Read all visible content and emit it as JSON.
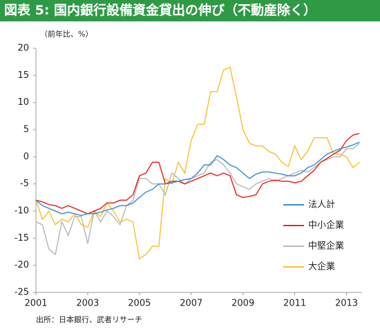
{
  "chart_data": {
    "type": "line",
    "title": "図表 5: 国内銀行設備資金貸出の伸び（不動産除く）",
    "y_label": "（前年比、%）",
    "source": "出所：日本銀行、武者リサーチ",
    "x": [
      2001,
      2001.25,
      2001.5,
      2001.75,
      2002,
      2002.25,
      2002.5,
      2002.75,
      2003,
      2003.25,
      2003.5,
      2003.75,
      2004,
      2004.25,
      2004.5,
      2004.75,
      2005,
      2005.25,
      2005.5,
      2005.75,
      2006,
      2006.25,
      2006.5,
      2006.75,
      2007,
      2007.25,
      2007.5,
      2007.75,
      2008,
      2008.25,
      2008.5,
      2008.75,
      2009,
      2009.25,
      2009.5,
      2009.75,
      2010,
      2010.25,
      2010.5,
      2010.75,
      2011,
      2011.25,
      2011.5,
      2011.75,
      2012,
      2012.25,
      2012.5,
      2012.75,
      2013,
      2013.25,
      2013.5
    ],
    "series": [
      {
        "name": "法人計",
        "color": "#3a8fd0",
        "values": [
          -8,
          -9,
          -9.5,
          -10,
          -10.5,
          -10.2,
          -10.5,
          -10.8,
          -10.5,
          -10.5,
          -10.2,
          -9.8,
          -9.5,
          -9,
          -9,
          -8.5,
          -7.5,
          -6.5,
          -6,
          -5,
          -5,
          -4.8,
          -4.5,
          -4.2,
          -4,
          -3,
          -1.5,
          -1.5,
          0.2,
          -0.5,
          -1.5,
          -2,
          -3,
          -4,
          -3.2,
          -2.8,
          -2.8,
          -3,
          -3.2,
          -3.5,
          -3.5,
          -3,
          -2,
          -1.5,
          -0.5,
          0.5,
          1,
          1.5,
          1.8,
          2.2,
          2.7
        ]
      },
      {
        "name": "中小企業",
        "color": "#e8261f",
        "values": [
          -8,
          -8.3,
          -8.8,
          -9,
          -9.5,
          -9,
          -9.5,
          -10,
          -10.5,
          -10,
          -9.5,
          -8.5,
          -8.5,
          -8,
          -8,
          -7,
          -3.5,
          -3,
          -1,
          -1,
          -5,
          -4.5,
          -4.5,
          -5,
          -4.5,
          -4,
          -3.5,
          -3,
          -3.5,
          -3,
          -3.5,
          -7,
          -7.5,
          -7.3,
          -7,
          -5,
          -4.5,
          -4.3,
          -4.5,
          -4.5,
          -4.8,
          -4.5,
          -3.5,
          -2.5,
          -1,
          -0.3,
          0.5,
          1.2,
          3,
          4,
          4.3
        ]
      },
      {
        "name": "中堅企業",
        "color": "#b8b8b8",
        "values": [
          -12,
          -12.5,
          -17,
          -18,
          -12,
          -14.5,
          -11,
          -11,
          -16,
          -10,
          -12,
          -10,
          -11,
          -12.5,
          -9,
          -8,
          -4,
          -4,
          -5,
          -5,
          -7,
          -3,
          -4,
          -5,
          -4,
          -3.5,
          -3,
          -1,
          -0.5,
          -1.5,
          -3,
          -5,
          -5.5,
          -6,
          -5,
          -4.5,
          -4,
          -4.5,
          -4,
          -3.5,
          -3,
          -2.5,
          -2.8,
          -2,
          -1,
          -0.5,
          0,
          0,
          1.5,
          1.5,
          2.5
        ]
      },
      {
        "name": "大企業",
        "color": "#f5c332",
        "values": [
          -8,
          -11.5,
          -10,
          -12.5,
          -11.5,
          -12,
          -10.5,
          -12.5,
          -13,
          -10,
          -11,
          -8.5,
          -10,
          -12,
          -11.5,
          -12,
          -18.8,
          -18,
          -16.5,
          -16.5,
          -4,
          -5,
          -1,
          -3,
          3,
          6,
          6,
          12,
          12,
          16,
          16.5,
          11,
          5,
          2.5,
          2,
          2,
          1,
          0.5,
          -1,
          -1.8,
          2,
          -0.5,
          1,
          3.5,
          3.5,
          3.5,
          0.5,
          0.5,
          0,
          -2,
          -1
        ]
      }
    ],
    "xlim": [
      2001,
      2013.6
    ],
    "xticks": [
      2001,
      2003,
      2005,
      2007,
      2009,
      2011,
      2013
    ],
    "ylim": [
      -25,
      20
    ],
    "yticks": [
      -25,
      -20,
      -15,
      -10,
      -5,
      0,
      5,
      10,
      15,
      20
    ],
    "legend": "right"
  }
}
